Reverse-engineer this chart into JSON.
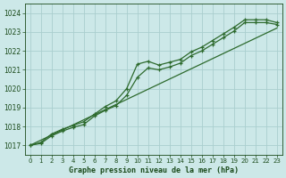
{
  "xlabel": "Graphe pression niveau de la mer (hPa)",
  "hours": [
    0,
    1,
    2,
    3,
    4,
    5,
    6,
    7,
    8,
    9,
    10,
    11,
    12,
    13,
    14,
    15,
    16,
    17,
    18,
    19,
    20,
    21,
    22,
    23
  ],
  "line_upper": [
    1017.0,
    1017.15,
    1017.6,
    1017.85,
    1018.05,
    1018.25,
    1018.65,
    1019.05,
    1019.35,
    1020.0,
    1021.3,
    1021.45,
    1021.25,
    1021.4,
    1021.55,
    1021.95,
    1022.2,
    1022.55,
    1022.9,
    1023.25,
    1023.65,
    1023.65,
    1023.65,
    1023.5
  ],
  "line_lower": [
    1017.0,
    1017.1,
    1017.5,
    1017.75,
    1017.95,
    1018.1,
    1018.55,
    1018.85,
    1019.1,
    1019.65,
    1020.6,
    1021.1,
    1021.0,
    1021.15,
    1021.35,
    1021.75,
    1022.0,
    1022.35,
    1022.7,
    1023.05,
    1023.5,
    1023.5,
    1023.5,
    1023.4
  ],
  "line_straight": [
    1017.0,
    1017.27,
    1017.54,
    1017.81,
    1018.08,
    1018.35,
    1018.62,
    1018.89,
    1019.16,
    1019.43,
    1019.7,
    1019.97,
    1020.24,
    1020.51,
    1020.78,
    1021.05,
    1021.32,
    1021.59,
    1021.86,
    1022.13,
    1022.4,
    1022.67,
    1022.94,
    1023.21
  ],
  "line_color": "#2d6a2d",
  "bg_color": "#cce8e8",
  "grid_color": "#aacece",
  "text_color": "#1a4a1a",
  "ylim": [
    1016.5,
    1024.5
  ],
  "yticks": [
    1017,
    1018,
    1019,
    1020,
    1021,
    1022,
    1023,
    1024
  ],
  "xlim": [
    -0.5,
    23.5
  ],
  "xticks": [
    0,
    1,
    2,
    3,
    4,
    5,
    6,
    7,
    8,
    9,
    10,
    11,
    12,
    13,
    14,
    15,
    16,
    17,
    18,
    19,
    20,
    21,
    22,
    23
  ]
}
